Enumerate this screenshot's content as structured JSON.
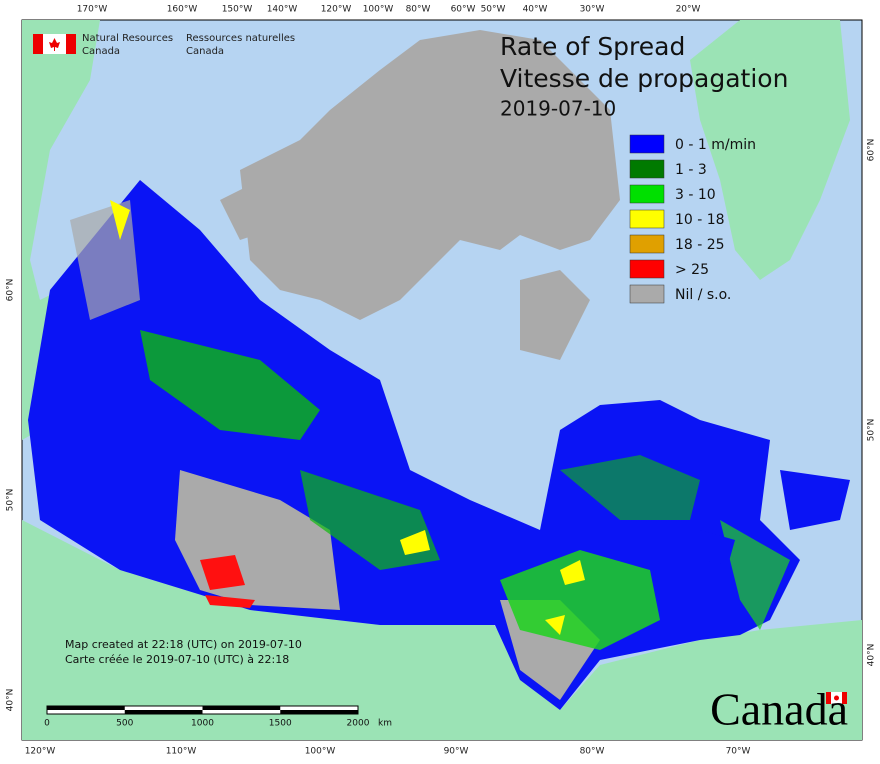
{
  "header": {
    "org_en": [
      "Natural Resources",
      "Canada"
    ],
    "org_fr": [
      "Ressources naturelles",
      "Canada"
    ]
  },
  "title": {
    "line1": "Rate of Spread",
    "line2": "Vitesse de propagation",
    "date": "2019-07-10"
  },
  "legend": [
    {
      "label": "0 - 1 m/min",
      "color": "#0000ff"
    },
    {
      "label": "1 - 3",
      "color": "#007a00"
    },
    {
      "label": "3 - 10",
      "color": "#00e000"
    },
    {
      "label": "10 - 18",
      "color": "#ffff00"
    },
    {
      "label": "18 - 25",
      "color": "#e0a000"
    },
    {
      "label": "> 25",
      "color": "#ff0000"
    },
    {
      "label": "Nil / s.o.",
      "color": "#aaaaaa"
    }
  ],
  "graticule": {
    "top": [
      "170°W",
      "160°W",
      "150°W",
      "140°W",
      "120°W",
      "100°W",
      "80°W",
      "60°W",
      "50°W",
      "40°W",
      "30°W",
      "20°W"
    ],
    "bottom": [
      "120°W",
      "110°W",
      "100°W",
      "90°W",
      "80°W",
      "70°W"
    ],
    "left": [
      "60°N",
      "50°N",
      "40°N"
    ],
    "right": [
      "60°N",
      "50°N",
      "40°N"
    ]
  },
  "footer": {
    "created_en": "Map created at 22:18 (UTC) on 2019-07-10",
    "created_fr": "Carte créée le 2019-07-10 (UTC) à 22:18"
  },
  "scale_bar": {
    "labels": [
      0,
      500,
      1000,
      1500,
      2000
    ],
    "unit": "km"
  },
  "wordmark": "Canada"
}
